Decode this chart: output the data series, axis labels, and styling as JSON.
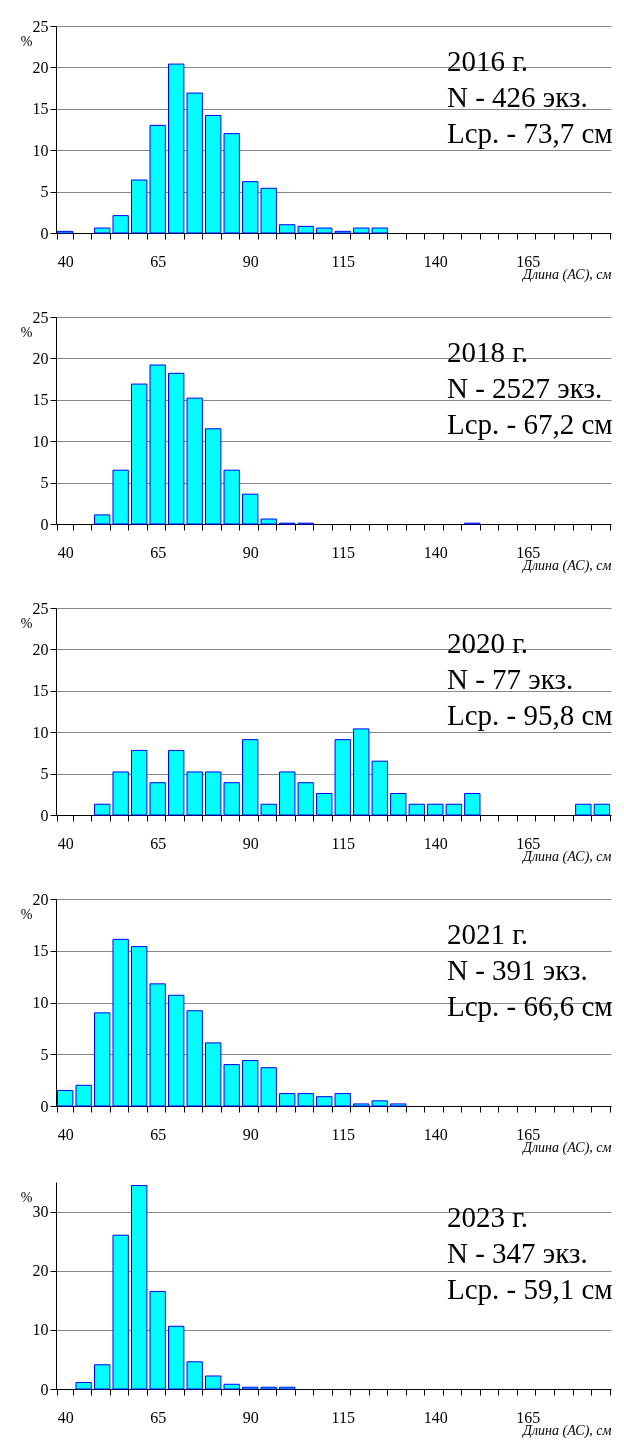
{
  "chart_data": [
    {
      "type": "bar",
      "categories": [
        "40",
        null,
        null,
        null,
        null,
        "65",
        null,
        null,
        null,
        null,
        "90",
        null,
        null,
        null,
        null,
        "115",
        null,
        null,
        null,
        null,
        "140",
        null,
        null,
        null,
        null,
        "165",
        null,
        null,
        null,
        null
      ],
      "values": [
        0.2,
        0,
        0.6,
        2.1,
        6.4,
        13.0,
        20.4,
        16.9,
        14.2,
        12.0,
        6.2,
        5.4,
        1.0,
        0.8,
        0.6,
        0.2,
        0.6,
        0.6,
        0,
        0,
        0,
        0,
        0,
        0,
        0,
        0,
        0,
        0,
        0,
        0
      ],
      "color": "#00ffff",
      "ylabel": "%",
      "xlabel": "Длина (АС), см",
      "ylim": [
        0,
        25
      ],
      "yticks": [
        0,
        5,
        10,
        15,
        20,
        25
      ],
      "grid": "y",
      "annotations": [
        "2016 г.",
        "N - 426 экз.",
        "Lср. - 73,7 см"
      ]
    },
    {
      "type": "bar",
      "categories": [
        "40",
        null,
        null,
        null,
        null,
        "65",
        null,
        null,
        null,
        null,
        "90",
        null,
        null,
        null,
        null,
        "115",
        null,
        null,
        null,
        null,
        "140",
        null,
        null,
        null,
        null,
        "165",
        null,
        null,
        null,
        null
      ],
      "values": [
        0,
        0,
        1.1,
        6.5,
        16.9,
        19.2,
        18.2,
        15.2,
        11.5,
        6.5,
        3.6,
        0.6,
        0.1,
        0.1,
        0,
        0,
        0,
        0,
        0,
        0,
        0,
        0,
        0.1,
        0,
        0,
        0,
        0,
        0,
        0,
        0
      ],
      "color": "#00ffff",
      "ylabel": "%",
      "xlabel": "Длина (АС), см",
      "ylim": [
        0,
        25
      ],
      "yticks": [
        0,
        5,
        10,
        15,
        20,
        25
      ],
      "grid": "y",
      "annotations": [
        "2018 г.",
        "N - 2527 экз.",
        "Lср. - 67,2 см"
      ]
    },
    {
      "type": "bar",
      "categories": [
        "40",
        null,
        null,
        null,
        null,
        "65",
        null,
        null,
        null,
        null,
        "90",
        null,
        null,
        null,
        null,
        "115",
        null,
        null,
        null,
        null,
        "140",
        null,
        null,
        null,
        null,
        "165",
        null,
        null,
        null,
        null
      ],
      "values": [
        0,
        0,
        1.3,
        5.2,
        7.8,
        3.9,
        7.8,
        5.2,
        5.2,
        3.9,
        9.1,
        1.3,
        5.2,
        3.9,
        2.6,
        9.1,
        10.4,
        6.5,
        2.6,
        1.3,
        1.3,
        1.3,
        2.6,
        0,
        0,
        0,
        0,
        0,
        1.3,
        1.3
      ],
      "color": "#00ffff",
      "ylabel": "%",
      "xlabel": "Длина (АС), см",
      "ylim": [
        0,
        25
      ],
      "yticks": [
        0,
        5,
        10,
        15,
        20,
        25
      ],
      "grid": "y",
      "annotations": [
        "2020 г.",
        "N - 77 экз.",
        "Lср. - 95,8 см"
      ]
    },
    {
      "type": "bar",
      "categories": [
        "40",
        null,
        null,
        null,
        null,
        "65",
        null,
        null,
        null,
        null,
        "90",
        null,
        null,
        null,
        null,
        "115",
        null,
        null,
        null,
        null,
        "140",
        null,
        null,
        null,
        null,
        "165",
        null,
        null,
        null,
        null
      ],
      "values": [
        1.5,
        2.0,
        9.0,
        16.1,
        15.4,
        11.8,
        10.7,
        9.2,
        6.1,
        4.0,
        4.4,
        3.7,
        1.2,
        1.2,
        0.9,
        1.2,
        0.2,
        0.5,
        0.2,
        0,
        0,
        0,
        0,
        0,
        0,
        0,
        0,
        0,
        0,
        0
      ],
      "color": "#00ffff",
      "ylabel": "%",
      "xlabel": "Длина (АС), см",
      "ylim": [
        0,
        20
      ],
      "yticks": [
        0,
        5,
        10,
        15,
        20
      ],
      "grid": "y",
      "annotations": [
        "2021 г.",
        "N - 391 экз.",
        "Lср. - 66,6 см"
      ]
    },
    {
      "type": "bar",
      "categories": [
        "40",
        null,
        null,
        null,
        null,
        "65",
        null,
        null,
        null,
        null,
        "90",
        null,
        null,
        null,
        null,
        "115",
        null,
        null,
        null,
        null,
        "140",
        null,
        null,
        null,
        null,
        "165",
        null,
        null,
        null,
        null
      ],
      "values": [
        0,
        1.1,
        4.1,
        26.0,
        34.4,
        16.5,
        10.6,
        4.6,
        2.2,
        0.8,
        0.3,
        0.3,
        0.3,
        0,
        0,
        0,
        0,
        0,
        0,
        0,
        0,
        0,
        0,
        0,
        0,
        0,
        0,
        0,
        0,
        0
      ],
      "color": "#00ffff",
      "ylabel": "%",
      "xlabel": "Длина (АС), см",
      "ylim": [
        0,
        35
      ],
      "yticks": [
        0,
        10,
        20,
        30
      ],
      "grid": "y",
      "annotations": [
        "2023 г.",
        "N - 347 экз.",
        "Lср. - 59,1 см"
      ]
    }
  ]
}
